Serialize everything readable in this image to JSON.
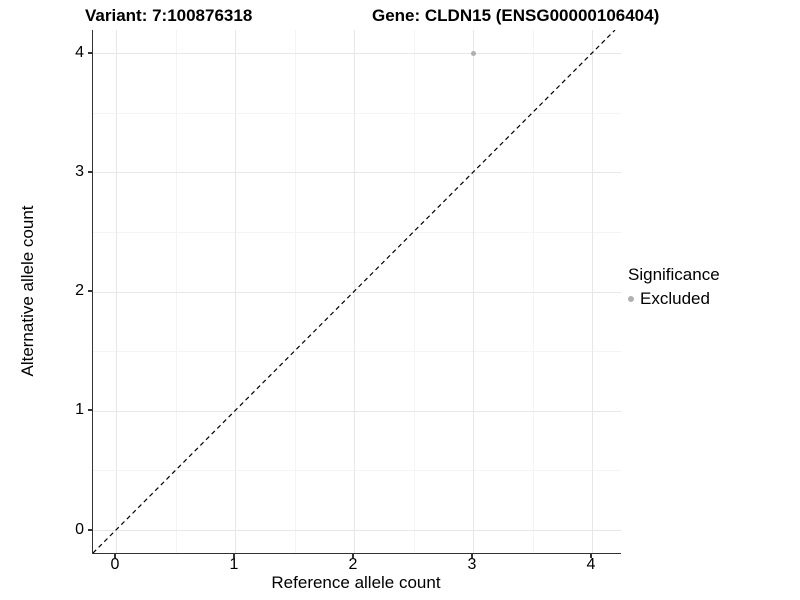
{
  "titles": {
    "variant": "Variant: 7:100876318",
    "gene": "Gene: CLDN15 (ENSG00000106404)"
  },
  "axes": {
    "x_label": "Reference allele count",
    "y_label": "Alternative allele count",
    "x_tick_labels": [
      "0",
      "1",
      "2",
      "3",
      "4"
    ],
    "y_tick_labels": [
      "0",
      "1",
      "2",
      "3",
      "4"
    ]
  },
  "legend": {
    "title": "Significance",
    "items": [
      {
        "label": "Excluded",
        "color": "#b0b0b0"
      }
    ]
  },
  "colors": {
    "background": "#ffffff",
    "grid_major": "#e7e7e7",
    "grid_minor": "#f4f4f4",
    "axis_line": "#333333",
    "reference_line": "#000000",
    "point_excluded": "#b0b0b0"
  },
  "chart_data": {
    "type": "scatter",
    "title": "Variant: 7:100876318    Gene: CLDN15 (ENSG00000106404)",
    "xlabel": "Reference allele count",
    "ylabel": "Alternative allele count",
    "xlim": [
      -0.2,
      4.25
    ],
    "ylim": [
      -0.2,
      4.2
    ],
    "x_ticks": [
      0,
      1,
      2,
      3,
      4
    ],
    "y_ticks": [
      0,
      1,
      2,
      3,
      4
    ],
    "minor_breaks_x": [
      0.5,
      1.5,
      2.5,
      3.5
    ],
    "minor_breaks_y": [
      0.5,
      1.5,
      2.5,
      3.5
    ],
    "grid": true,
    "legend_position": "right",
    "legend_title": "Significance",
    "series": [
      {
        "name": "Excluded",
        "color": "#b0b0b0",
        "points": [
          {
            "x": 3,
            "y": 4
          }
        ]
      }
    ],
    "reference_line": {
      "type": "identity",
      "equation": "y = x",
      "style": "dashed",
      "color": "#000000"
    }
  }
}
